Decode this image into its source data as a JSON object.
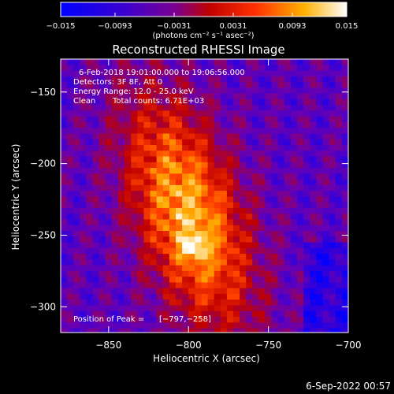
{
  "chart_data": {
    "type": "heatmap",
    "title": "Reconstructed RHESSI Image",
    "xlabel": "Heliocentric X (arcsec)",
    "ylabel": "Heliocentric Y (arcsec)",
    "xlim": [
      -880,
      -700
    ],
    "ylim": [
      -318,
      -127
    ],
    "x_ticks": [
      -850,
      -800,
      -750,
      -700
    ],
    "x_tick_labels": [
      "−850",
      "−800",
      "−750",
      "−700"
    ],
    "y_ticks": [
      -150,
      -200,
      -250,
      -300
    ],
    "y_tick_labels": [
      "−150",
      "−200",
      "−250",
      "−300"
    ],
    "colorbar": {
      "range": [
        -0.015,
        0.015
      ],
      "ticks": [
        -0.015,
        -0.0093,
        -0.0031,
        0.0031,
        0.0093,
        0.015
      ],
      "tick_labels": [
        "−0.015",
        "−0.0093",
        "−0.0031",
        "0.0031",
        "0.0093",
        "0.015"
      ],
      "unit_label": "(photons cm⁻² s⁻¹ asec⁻²)",
      "colors": [
        "#0000ff",
        "#6a00b0",
        "#c00000",
        "#ff4000",
        "#ffb000",
        "#ffffff"
      ]
    },
    "source_center": [
      -800,
      -235
    ],
    "peak": [
      -797,
      -258
    ],
    "annotations": {
      "time_range": "6-Feb-2018 19:01:00.000 to 19:06:56.000",
      "detectors": "Detectors: 3F 8F, Att 0",
      "energy_range": "Energy Range: 12.0 - 25.0 keV",
      "algorithm": "Clean",
      "total_counts": "Total counts: 6.71E+03",
      "peak_label": "Position of Peak = ",
      "peak_value": "[−797,−258]"
    },
    "grid": false
  },
  "footer_date": "6-Sep-2022 00:57"
}
